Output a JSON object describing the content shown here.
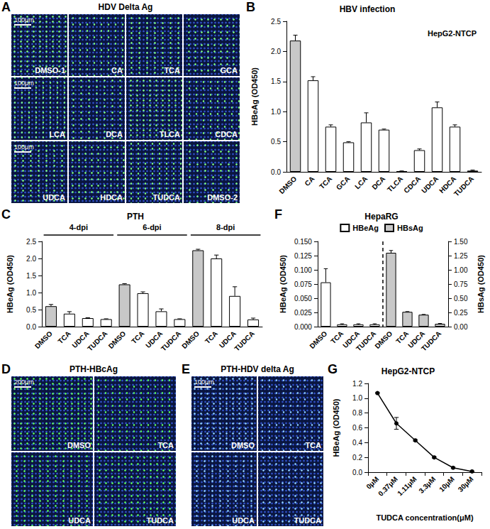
{
  "chart_data": [
    {
      "panel_label": "B",
      "type": "bar",
      "title": "HBV infection",
      "subtitle": "HepG2-NTCP",
      "y_label": "HBeAg (OD450)",
      "categories": [
        "DMSO",
        "CA",
        "TCA",
        "GCA",
        "LCA",
        "DCA",
        "TLCA",
        "CDCA",
        "UDCA",
        "HDCA",
        "TUDCA"
      ],
      "values": [
        2.18,
        1.52,
        0.75,
        0.49,
        0.82,
        0.7,
        0.01,
        0.36,
        1.07,
        0.75,
        0.02
      ],
      "errors": [
        0.09,
        0.06,
        0.03,
        0.01,
        0.16,
        0.01,
        0.005,
        0.02,
        0.09,
        0.03,
        0.01
      ],
      "colors": [
        "#c8c8c8",
        "#ffffff",
        "#ffffff",
        "#ffffff",
        "#ffffff",
        "#ffffff",
        "#ffffff",
        "#ffffff",
        "#ffffff",
        "#ffffff",
        "#ffffff"
      ],
      "ylim": [
        0,
        2.5
      ],
      "yticks": [
        {
          "value": 0,
          "label": "0.0"
        },
        {
          "value": 0.5,
          "label": "0.5"
        },
        {
          "value": 1,
          "label": "1.0"
        },
        {
          "value": 1.5,
          "label": "1.5"
        },
        {
          "value": 2,
          "label": "2.0"
        },
        {
          "value": 2.5,
          "label": "2.5"
        }
      ],
      "grid": false
    },
    {
      "panel_label": "C",
      "type": "bar",
      "title": "PTH",
      "y_label": "HBeAg (OD450)",
      "groups": [
        "4-dpi",
        "6-dpi",
        "8-dpi"
      ],
      "categories": [
        "DMSO",
        "TCA",
        "UDCA",
        "TUDCA",
        "DMSO",
        "TCA",
        "UDCA",
        "TUDCA",
        "DMSO",
        "TCA",
        "UDCA",
        "TUDCA"
      ],
      "values": [
        0.6,
        0.38,
        0.25,
        0.22,
        1.24,
        0.98,
        0.45,
        0.22,
        2.24,
        2.0,
        0.9,
        0.21
      ],
      "errors": [
        0.05,
        0.06,
        0.01,
        0.01,
        0.02,
        0.04,
        0.07,
        0.01,
        0.03,
        0.1,
        0.27,
        0.04
      ],
      "colors": [
        "#c8c8c8",
        "#ffffff",
        "#ffffff",
        "#ffffff",
        "#c8c8c8",
        "#ffffff",
        "#ffffff",
        "#ffffff",
        "#c8c8c8",
        "#ffffff",
        "#ffffff",
        "#ffffff"
      ],
      "ylim": [
        0,
        2.5
      ],
      "yticks": [
        {
          "value": 0,
          "label": "0.0"
        },
        {
          "value": 0.5,
          "label": "0.5"
        },
        {
          "value": 1,
          "label": "1.0"
        },
        {
          "value": 1.5,
          "label": "1.5"
        },
        {
          "value": 2,
          "label": "2.0"
        },
        {
          "value": 2.5,
          "label": "2.5"
        }
      ],
      "grid": false
    },
    {
      "panel_label": "F",
      "type": "bar",
      "title": "HepaRG",
      "y_label": "HBeAg (OD450)",
      "y2_label": "HBsAg (OD450)",
      "legend": "top",
      "categories": [
        "DMSO",
        "TCA",
        "UDCA",
        "TUDCA",
        "DMSO",
        "TCA",
        "UDCA",
        "TUDCA"
      ],
      "series": [
        {
          "name": "HBeAg",
          "color": "#ffffff",
          "values": [
            0.078,
            0.004,
            0.004,
            0.004,
            null,
            null,
            null,
            null
          ],
          "errors": [
            0.024,
            0.001,
            0.001,
            0.001,
            null,
            null,
            null,
            null
          ]
        },
        {
          "name": "HBsAg",
          "color": "#c8c8c8",
          "axis": "y2",
          "values": [
            null,
            null,
            null,
            null,
            1.3,
            0.26,
            0.21,
            0.05
          ],
          "errors": [
            null,
            null,
            null,
            null,
            0.04,
            0.005,
            0.005,
            0.005
          ]
        }
      ],
      "ylim": [
        0,
        0.15
      ],
      "yticks": [
        {
          "value": 0,
          "label": "0.000"
        },
        {
          "value": 0.025,
          "label": "0.025"
        },
        {
          "value": 0.05,
          "label": "0.050"
        },
        {
          "value": 0.075,
          "label": "0.075"
        },
        {
          "value": 0.1,
          "label": "0.100"
        },
        {
          "value": 0.125,
          "label": "0.125"
        },
        {
          "value": 0.15,
          "label": "0.150"
        }
      ],
      "y2lim": [
        0,
        1.5
      ],
      "y2ticks": [
        {
          "value": 0,
          "label": "0.00"
        },
        {
          "value": 0.25,
          "label": "0.25"
        },
        {
          "value": 0.5,
          "label": "0.50"
        },
        {
          "value": 0.75,
          "label": "0.75"
        },
        {
          "value": 1,
          "label": "1.00"
        },
        {
          "value": 1.25,
          "label": "1.25"
        },
        {
          "value": 1.5,
          "label": "1.50"
        }
      ],
      "grid": false
    },
    {
      "panel_label": "G",
      "type": "line",
      "title": "HepG2-NTCP",
      "y_label": "HBeAg (OD450)",
      "x_label": "TUDCA concentration(μM)",
      "categories": [
        "0μM",
        "0.37μM",
        "1.11μM",
        "3.3μM",
        "10μM",
        "30μM"
      ],
      "values": [
        1.07,
        0.66,
        0.43,
        0.2,
        0.06,
        0.01
      ],
      "errors": [
        0.01,
        0.08,
        0.01,
        0.01,
        0.01,
        0.005
      ],
      "color": "#000000",
      "marker": "circle",
      "ylim": [
        0,
        1.2
      ],
      "yticks": [
        {
          "value": 0,
          "label": "0.0"
        },
        {
          "value": 0.2,
          "label": "0.2"
        },
        {
          "value": 0.4,
          "label": "0.4"
        },
        {
          "value": 0.6,
          "label": "0.6"
        },
        {
          "value": 0.8,
          "label": "0.8"
        },
        {
          "value": 1,
          "label": "1.0"
        },
        {
          "value": 1.2,
          "label": "1.2"
        }
      ],
      "grid": false
    }
  ],
  "images": [
    {
      "panel_label": "A",
      "title": "HDV Delta Ag",
      "color": "#7dff7d",
      "tiles": [
        {
          "label": "DMSO-1",
          "scale_bar": "100μm"
        },
        {
          "label": "CA"
        },
        {
          "label": "TCA"
        },
        {
          "label": "GCA"
        },
        {
          "label": "LCA",
          "scale_bar": "100μm"
        },
        {
          "label": "DCA"
        },
        {
          "label": "TLCA"
        },
        {
          "label": "CDCA"
        },
        {
          "label": "UDCA",
          "scale_bar": "100μm"
        },
        {
          "label": "HDCA"
        },
        {
          "label": "TUDCA"
        },
        {
          "label": "DMSO-2"
        }
      ]
    },
    {
      "panel_label": "D",
      "title": "PTH-HBcAg",
      "color": "#5cff5c",
      "tiles": [
        {
          "label": "DMSO",
          "scale_bar": "200μm"
        },
        {
          "label": "TCA"
        },
        {
          "label": "UDCA"
        },
        {
          "label": "TUDCA"
        }
      ]
    },
    {
      "panel_label": "E",
      "title": "PTH-HDV delta Ag",
      "color": "#8fd0ff",
      "tiles": [
        {
          "label": "DMSO",
          "scale_bar": "100μm"
        },
        {
          "label": "TCA"
        },
        {
          "label": "UDCA"
        },
        {
          "label": "TUDCA"
        }
      ]
    }
  ]
}
